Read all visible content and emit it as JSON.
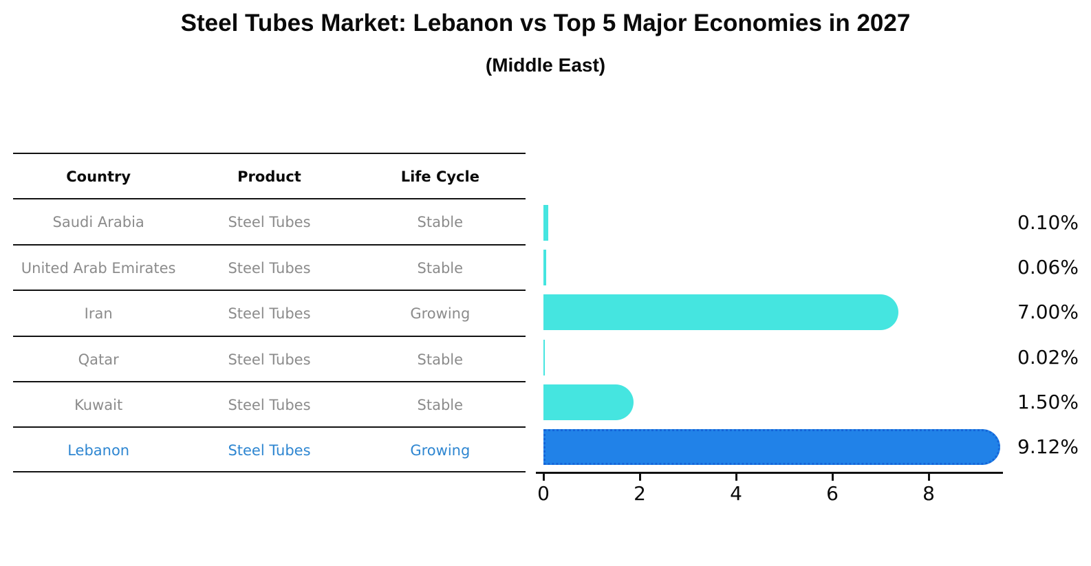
{
  "title": "Steel Tubes Market: Lebanon vs Top 5 Major Economies in 2027",
  "subtitle": "(Middle East)",
  "table": {
    "headers": [
      "Country",
      "Product",
      "Life Cycle"
    ],
    "rows": [
      {
        "country": "Saudi Arabia",
        "product": "Steel Tubes",
        "life_cycle": "Stable",
        "highlighted": false
      },
      {
        "country": "United Arab Emirates",
        "product": "Steel Tubes",
        "life_cycle": "Stable",
        "highlighted": false
      },
      {
        "country": "Iran",
        "product": "Steel Tubes",
        "life_cycle": "Growing",
        "highlighted": false
      },
      {
        "country": "Qatar",
        "product": "Steel Tubes",
        "life_cycle": "Stable",
        "highlighted": false
      },
      {
        "country": "Kuwait",
        "product": "Steel Tubes",
        "life_cycle": "Stable",
        "highlighted": false
      },
      {
        "country": "Lebanon",
        "product": "Steel Tubes",
        "life_cycle": "Growing",
        "highlighted": true
      }
    ]
  },
  "chart_data": {
    "type": "bar",
    "orientation": "horizontal",
    "title": "Steel Tubes Market: Lebanon vs Top 5 Major Economies in 2027",
    "subtitle": "(Middle East)",
    "categories": [
      "Saudi Arabia",
      "United Arab Emirates",
      "Iran",
      "Qatar",
      "Kuwait",
      "Lebanon"
    ],
    "values": [
      0.1,
      0.06,
      7.0,
      0.02,
      1.5,
      9.12
    ],
    "value_labels": [
      "0.10%",
      "0.06%",
      "7.00%",
      "0.02%",
      "1.50%",
      "9.12%"
    ],
    "units": "%",
    "highlighted_category": "Lebanon",
    "x_ticks": [
      "0",
      "2",
      "4",
      "6",
      "8"
    ],
    "xlim": [
      0,
      9.6
    ],
    "grid": false,
    "legend": "none"
  },
  "colors": {
    "bar_default": "#45E5E0",
    "bar_highlight": "#2182E8",
    "bar_highlight_border": "#1565D8",
    "row_text": "#8b8b8b",
    "row_text_highlight": "#2E86D1",
    "axis": "#111111",
    "text": "#0a0a0a"
  }
}
